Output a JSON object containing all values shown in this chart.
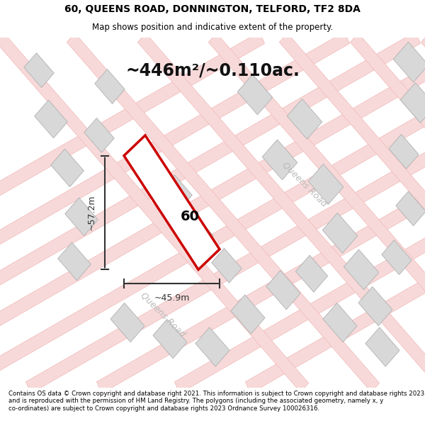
{
  "title_line1": "60, QUEENS ROAD, DONNINGTON, TELFORD, TF2 8DA",
  "title_line2": "Map shows position and indicative extent of the property.",
  "area_text": "~446m²/~0.110ac.",
  "label_60": "60",
  "dim_vertical": "~57.2m",
  "dim_horizontal": "~45.9m",
  "queens_road_label": "Queens Road",
  "queens_road_label2": "Queens Road",
  "footer_text": "Contains OS data © Crown copyright and database right 2021. This information is subject to Crown copyright and database rights 2023 and is reproduced with the permission of HM Land Registry. The polygons (including the associated geometry, namely x, y co-ordinates) are subject to Crown copyright and database rights 2023 Ordnance Survey 100026316.",
  "bg_color": "#f5f5f5",
  "map_bg_color": "#f0efee",
  "road_color": "#f2b8b8",
  "road_fill": "#f7d9d9",
  "building_color": "#c8c8c8",
  "building_fill": "#d9d9d9",
  "property_color": "#cc0000",
  "dim_line_color": "#333333",
  "title_color": "#000000",
  "footer_color": "#000000",
  "area_color": "#111111",
  "label_color": "#000000",
  "road_text_color": "#aaaaaa"
}
